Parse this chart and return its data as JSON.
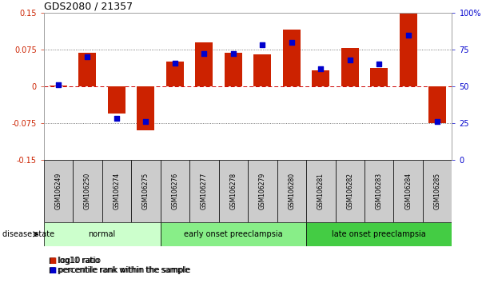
{
  "title": "GDS2080 / 21357",
  "samples": [
    "GSM106249",
    "GSM106250",
    "GSM106274",
    "GSM106275",
    "GSM106276",
    "GSM106277",
    "GSM106278",
    "GSM106279",
    "GSM106280",
    "GSM106281",
    "GSM106282",
    "GSM106283",
    "GSM106284",
    "GSM106285"
  ],
  "log10_ratio": [
    0.002,
    0.068,
    -0.055,
    -0.09,
    0.05,
    0.09,
    0.068,
    0.065,
    0.115,
    0.033,
    0.078,
    0.038,
    0.148,
    -0.075
  ],
  "percentile_rank": [
    51,
    70,
    28,
    26,
    66,
    72,
    72,
    78,
    80,
    62,
    68,
    65,
    85,
    26
  ],
  "bar_color": "#cc2200",
  "dot_color": "#0000cc",
  "ylim_left": [
    -0.15,
    0.15
  ],
  "ylim_right": [
    0,
    100
  ],
  "yticks_left": [
    -0.15,
    -0.075,
    0,
    0.075,
    0.15
  ],
  "yticks_right": [
    0,
    25,
    50,
    75,
    100
  ],
  "groups": [
    {
      "label": "normal",
      "start": 0,
      "end": 4,
      "color": "#ccffcc"
    },
    {
      "label": "early onset preeclampsia",
      "start": 4,
      "end": 9,
      "color": "#88ee88"
    },
    {
      "label": "late onset preeclampsia",
      "start": 9,
      "end": 14,
      "color": "#44cc44"
    }
  ],
  "disease_state_label": "disease state",
  "legend_items": [
    {
      "label": "log10 ratio",
      "color": "#cc2200"
    },
    {
      "label": "percentile rank within the sample",
      "color": "#0000cc"
    }
  ],
  "grid_color": "#555555",
  "zero_line_color": "#cc0000",
  "background_color": "#ffffff",
  "sample_box_color": "#cccccc",
  "bar_width": 0.6
}
